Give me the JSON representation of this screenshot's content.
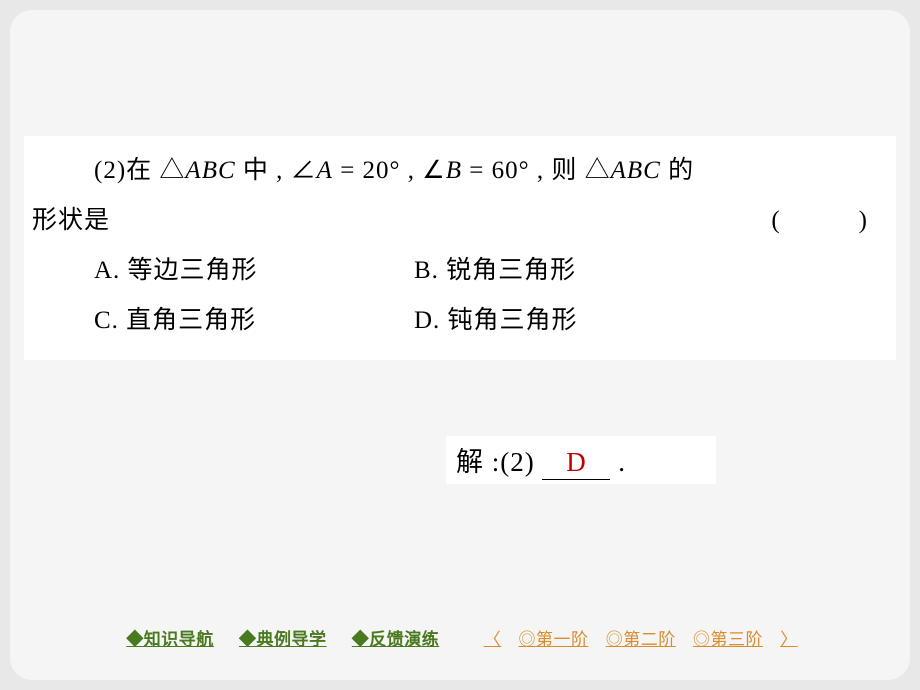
{
  "question": {
    "number": "(2)",
    "stem_pre": "在 △",
    "triangle1": "ABC",
    "stem_mid1": " 中 , ∠",
    "angleA": "A",
    "eq1": " = 20° , ∠",
    "angleB": "B",
    "eq2": " = 60° ,  则  △",
    "triangle2": "ABC",
    "stem_post": " 的",
    "line2_left": "形状是",
    "line2_right": "(　　　)",
    "optA": "A. 等边三角形",
    "optB": "B. 锐角三角形",
    "optC": "C. 直角三角形",
    "optD": "D. 钝角三角形"
  },
  "answer": {
    "label": "解 :(2)",
    "value": "D",
    "suffix": "."
  },
  "nav": {
    "g1": "◆知识导航",
    "g2": "◆典例导学",
    "g3": "◆反馈演练",
    "o_open": "〈",
    "o1": "◎第一阶",
    "o2": "◎第二阶",
    "o3": "◎第三阶",
    "o_close": "〉"
  },
  "colors": {
    "page_bg": "#e8e8e8",
    "slide_bg": "#f5f5f5",
    "block_bg": "#ffffff",
    "text": "#000000",
    "answer": "#c00000",
    "nav_green": "#4a7a1f",
    "nav_orange": "#d98c2e"
  }
}
